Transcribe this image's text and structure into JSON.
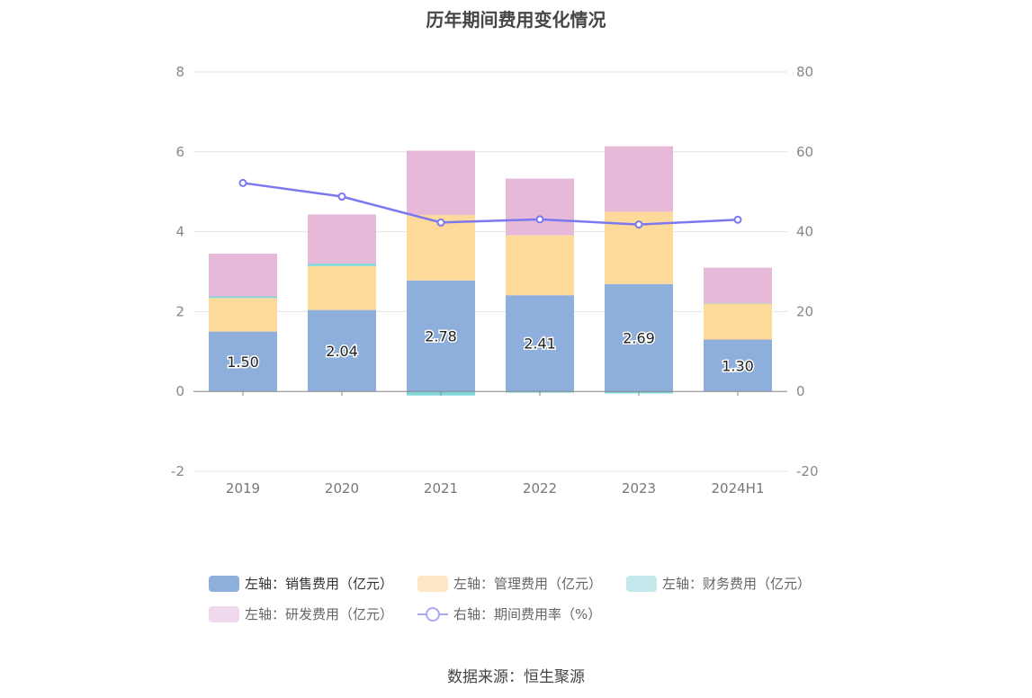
{
  "chart_data": {
    "type": "bar",
    "title": "历年期间费用变化情况",
    "categories": [
      "2019",
      "2020",
      "2021",
      "2022",
      "2023",
      "2024H1"
    ],
    "series": [
      {
        "name": "左轴：销售费用（亿元）",
        "type": "bar",
        "axis": "left",
        "color": "#8eaedb",
        "values": [
          1.5,
          2.04,
          2.78,
          2.41,
          2.69,
          1.3
        ]
      },
      {
        "name": "左轴：管理费用（亿元）",
        "type": "bar",
        "axis": "left",
        "color": "#fdd99a",
        "values": [
          0.84,
          1.1,
          1.64,
          1.5,
          1.81,
          0.9
        ]
      },
      {
        "name": "左轴：财务费用（亿元）",
        "type": "bar",
        "axis": "left",
        "color": "#7fd6d8",
        "values": [
          0.04,
          0.06,
          -0.1,
          -0.03,
          -0.05,
          0.01
        ]
      },
      {
        "name": "左轴：研发费用（亿元）",
        "type": "bar",
        "axis": "left",
        "color": "#e6b9d9",
        "values": [
          1.07,
          1.23,
          1.61,
          1.42,
          1.64,
          0.89
        ]
      },
      {
        "name": "右轴：期间费用率（%）",
        "type": "line",
        "axis": "right",
        "color": "#7b78f0",
        "values": [
          52.2,
          48.8,
          42.3,
          43.1,
          41.8,
          43.0
        ]
      }
    ],
    "data_labels": [
      "1.50",
      "2.04",
      "2.78",
      "2.41",
      "2.69",
      "1.30"
    ],
    "left_axis": {
      "ticks": [
        "8",
        "6",
        "4",
        "2",
        "0",
        "-2"
      ],
      "ylim": [
        -2,
        8
      ]
    },
    "right_axis": {
      "ticks": [
        "80",
        "60",
        "40",
        "20",
        "0",
        "-20"
      ],
      "ylim": [
        -20,
        80
      ]
    },
    "grid": true,
    "legend_position": "bottom"
  },
  "legend_colors": [
    "#8eaedb",
    "#fde7c4",
    "#c3e8eb",
    "#f0d9ec",
    "#a9a8f5"
  ],
  "source": "数据来源：恒生聚源"
}
